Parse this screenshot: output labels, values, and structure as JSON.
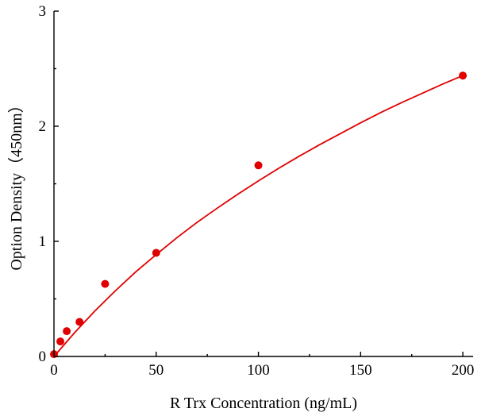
{
  "chart_data": {
    "type": "scatter",
    "title": "",
    "xlabel": "R Trx Concentration (ng/mL)",
    "ylabel": "Option Density（450nm）",
    "xlim": [
      0,
      205
    ],
    "ylim": [
      0,
      3
    ],
    "x_ticks": [
      0,
      50,
      100,
      150,
      200
    ],
    "y_ticks": [
      0,
      1,
      2,
      3
    ],
    "grid": false,
    "legend": "none",
    "series": [
      {
        "x": [
          0,
          3.125,
          6.25,
          12.5,
          25,
          50,
          100,
          200
        ],
        "y": [
          0.02,
          0.13,
          0.22,
          0.3,
          0.63,
          0.9,
          1.66,
          2.44
        ],
        "marker_color": "#e00000"
      }
    ],
    "fit_curve": {
      "color": "#e00000",
      "x": [
        0,
        10,
        20,
        30,
        40,
        50,
        60,
        70,
        80,
        90,
        100,
        110,
        120,
        130,
        140,
        150,
        160,
        170,
        180,
        190,
        200
      ],
      "y": [
        0.0,
        0.205,
        0.395,
        0.57,
        0.735,
        0.885,
        1.03,
        1.165,
        1.29,
        1.41,
        1.525,
        1.635,
        1.74,
        1.84,
        1.935,
        2.03,
        2.12,
        2.205,
        2.285,
        2.365,
        2.44
      ]
    }
  }
}
